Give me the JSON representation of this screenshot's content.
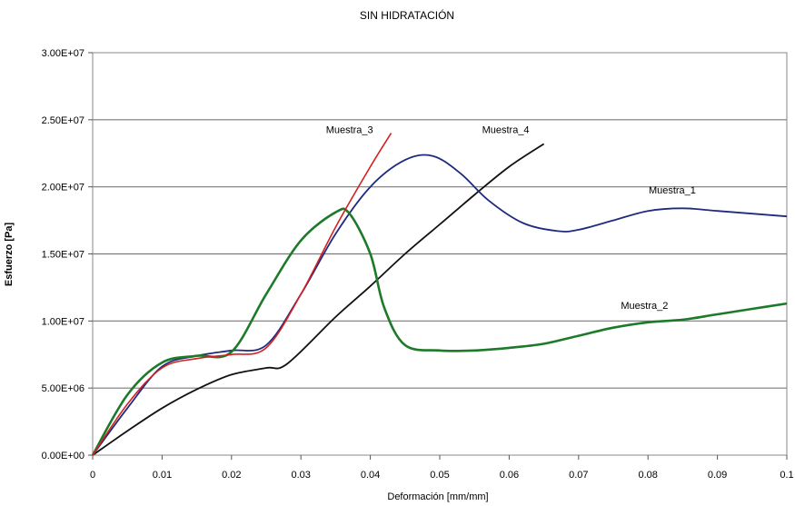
{
  "chart_data": {
    "type": "line",
    "title": "SIN HIDRATACIÓN",
    "xlabel": "Deformación [mm/mm]",
    "ylabel": "Esfuerzo [Pa]",
    "xlim": [
      0,
      0.1
    ],
    "ylim": [
      0,
      30000000
    ],
    "x_ticks": [
      "0",
      "0.01",
      "0.02",
      "0.03",
      "0.04",
      "0.05",
      "0.06",
      "0.07",
      "0.08",
      "0.09",
      "0.1"
    ],
    "y_ticks": [
      "0.00E+00",
      "5.00E+06",
      "1.00E+07",
      "1.50E+07",
      "2.00E+07",
      "2.50E+07",
      "3.00E+07"
    ],
    "grid": "horizontal",
    "legend": "inline labels",
    "series": [
      {
        "name": "Muestra_1",
        "color": "#1f2a80",
        "x": [
          0,
          0.005,
          0.01,
          0.015,
          0.02,
          0.025,
          0.03,
          0.035,
          0.04,
          0.045,
          0.049,
          0.053,
          0.057,
          0.062,
          0.067,
          0.07,
          0.075,
          0.08,
          0.085,
          0.09,
          0.095,
          0.1
        ],
        "y": [
          0,
          3500000,
          6600000,
          7400000,
          7800000,
          8200000,
          12000000,
          16500000,
          20000000,
          22000000,
          22300000,
          21000000,
          19000000,
          17300000,
          16700000,
          16800000,
          17500000,
          18200000,
          18400000,
          18200000,
          18000000,
          17800000
        ]
      },
      {
        "name": "Muestra_2",
        "color": "#1d7a2a",
        "x": [
          0,
          0.005,
          0.01,
          0.015,
          0.02,
          0.025,
          0.03,
          0.035,
          0.037,
          0.04,
          0.042,
          0.045,
          0.05,
          0.055,
          0.06,
          0.065,
          0.07,
          0.075,
          0.08,
          0.085,
          0.09,
          0.095,
          0.1
        ],
        "y": [
          0,
          4500000,
          6900000,
          7400000,
          7700000,
          12000000,
          16000000,
          18100000,
          18000000,
          15000000,
          11000000,
          8200000,
          7800000,
          7800000,
          8000000,
          8300000,
          8900000,
          9500000,
          9900000,
          10100000,
          10500000,
          10900000,
          11300000
        ]
      },
      {
        "name": "Muestra_3",
        "color": "#d42020",
        "x": [
          0,
          0.005,
          0.01,
          0.015,
          0.02,
          0.025,
          0.03,
          0.035,
          0.04,
          0.043
        ],
        "y": [
          0,
          3800000,
          6500000,
          7200000,
          7500000,
          8000000,
          12000000,
          17000000,
          21500000,
          24000000
        ]
      },
      {
        "name": "Muestra_4",
        "color": "#111111",
        "x": [
          0,
          0.005,
          0.01,
          0.015,
          0.02,
          0.025,
          0.028,
          0.035,
          0.04,
          0.045,
          0.05,
          0.055,
          0.06,
          0.065
        ],
        "y": [
          0,
          1800000,
          3500000,
          4900000,
          6000000,
          6500000,
          6800000,
          10300000,
          12600000,
          15000000,
          17200000,
          19400000,
          21500000,
          23200000
        ]
      }
    ],
    "annotations": [
      {
        "text": "Muestra_1",
        "x": 0.0835,
        "y": 19500000
      },
      {
        "text": "Muestra_2",
        "x": 0.0795,
        "y": 10900000
      },
      {
        "text": "Muestra_3",
        "x": 0.037,
        "y": 24000000
      },
      {
        "text": "Muestra_4",
        "x": 0.0595,
        "y": 24000000
      }
    ]
  }
}
